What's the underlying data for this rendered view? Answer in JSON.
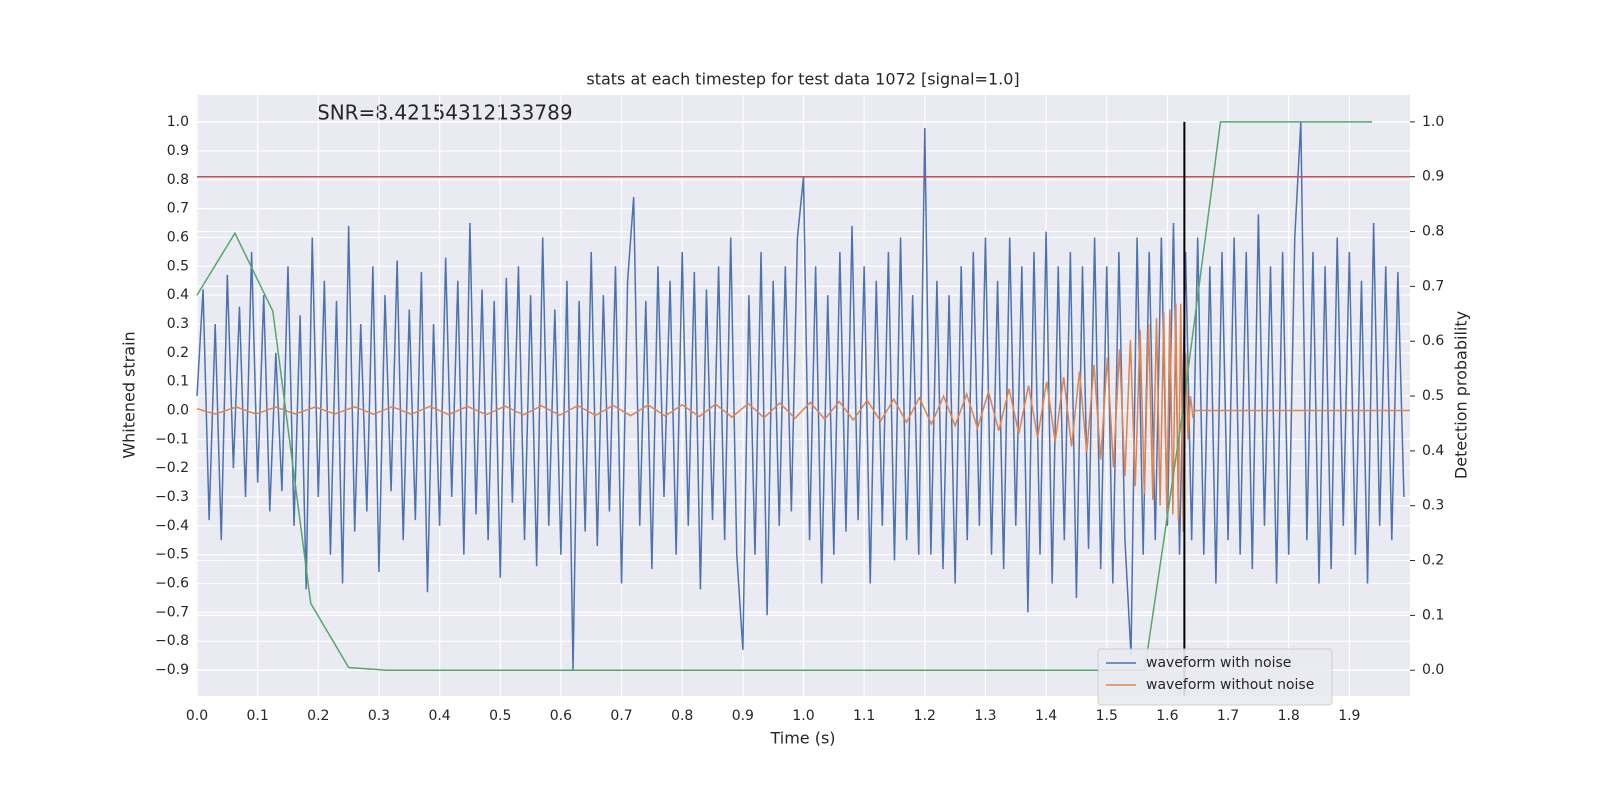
{
  "chart_data": {
    "type": "line",
    "title": "stats at each timestep for test data 1072 [signal=1.0]",
    "annotation": "SNR=8.42154312133789",
    "xlabel": "Time (s)",
    "ylabel": "Whitened strain",
    "y2label": "Detection probability",
    "xlim": [
      0,
      2.0
    ],
    "ylim": [
      -0.99,
      1.094
    ],
    "y2lim": [
      -0.047,
      1.049
    ],
    "xticks": [
      {
        "value": 0,
        "label": "0.0"
      },
      0.1,
      0.2,
      0.3,
      0.4,
      0.5,
      0.6,
      0.7,
      0.8,
      0.9,
      {
        "value": 1,
        "label": "1.0"
      },
      1.1,
      1.2,
      1.3,
      1.4,
      1.5,
      1.6,
      1.7,
      1.8,
      1.9
    ],
    "yticks": [
      {
        "value": -0.9,
        "label": "−0.9"
      },
      {
        "value": -0.8,
        "label": "−0.8"
      },
      {
        "value": -0.7,
        "label": "−0.7"
      },
      {
        "value": -0.6,
        "label": "−0.6"
      },
      {
        "value": -0.5,
        "label": "−0.5"
      },
      {
        "value": -0.4,
        "label": "−0.4"
      },
      {
        "value": -0.3,
        "label": "−0.3"
      },
      {
        "value": -0.2,
        "label": "−0.2"
      },
      {
        "value": -0.1,
        "label": "−0.1"
      },
      {
        "value": 0,
        "label": "0.0"
      },
      0.1,
      0.2,
      0.3,
      0.4,
      0.5,
      0.6,
      0.7,
      0.8,
      0.9,
      {
        "value": 1,
        "label": "1.0"
      }
    ],
    "y2ticks": [
      {
        "value": 0,
        "label": "0.0"
      },
      0.1,
      0.2,
      0.3,
      0.4,
      0.5,
      0.6,
      0.7,
      0.8,
      0.9,
      {
        "value": 1,
        "label": "1.0"
      }
    ],
    "grid": true,
    "legend": "lower right",
    "threshold": {
      "y2": 0.9,
      "color": "#c44e52"
    },
    "vline": {
      "x": 1.628,
      "y2range": [
        -0.047,
        1.0
      ],
      "color": "#000000"
    },
    "series": [
      {
        "name": "waveform with noise",
        "color": "#4c72b0",
        "x": [
          0,
          0.01,
          0.02,
          0.03,
          0.04,
          0.05,
          0.06,
          0.07,
          0.08,
          0.09,
          0.1,
          0.11,
          0.12,
          0.13,
          0.14,
          0.15,
          0.16,
          0.17,
          0.18,
          0.19,
          0.2,
          0.21,
          0.22,
          0.23,
          0.24,
          0.25,
          0.26,
          0.27,
          0.28,
          0.29,
          0.3,
          0.31,
          0.32,
          0.33,
          0.34,
          0.35,
          0.36,
          0.37,
          0.38,
          0.39,
          0.4,
          0.41,
          0.42,
          0.43,
          0.44,
          0.45,
          0.46,
          0.47,
          0.48,
          0.49,
          0.5,
          0.51,
          0.52,
          0.53,
          0.54,
          0.55,
          0.56,
          0.57,
          0.58,
          0.59,
          0.6,
          0.61,
          0.62,
          0.63,
          0.64,
          0.65,
          0.66,
          0.67,
          0.68,
          0.69,
          0.7,
          0.71,
          0.72,
          0.73,
          0.74,
          0.75,
          0.76,
          0.77,
          0.78,
          0.79,
          0.8,
          0.81,
          0.82,
          0.83,
          0.84,
          0.85,
          0.86,
          0.87,
          0.88,
          0.89,
          0.9,
          0.91,
          0.92,
          0.93,
          0.94,
          0.95,
          0.96,
          0.97,
          0.98,
          0.99,
          1.0,
          1.01,
          1.02,
          1.03,
          1.04,
          1.05,
          1.06,
          1.07,
          1.08,
          1.09,
          1.1,
          1.11,
          1.12,
          1.13,
          1.14,
          1.15,
          1.16,
          1.17,
          1.18,
          1.19,
          1.2,
          1.21,
          1.22,
          1.23,
          1.24,
          1.25,
          1.26,
          1.27,
          1.28,
          1.29,
          1.3,
          1.31,
          1.32,
          1.33,
          1.34,
          1.35,
          1.36,
          1.37,
          1.38,
          1.39,
          1.4,
          1.41,
          1.42,
          1.43,
          1.44,
          1.45,
          1.46,
          1.47,
          1.48,
          1.49,
          1.5,
          1.51,
          1.52,
          1.53,
          1.54,
          1.55,
          1.56,
          1.57,
          1.58,
          1.59,
          1.6,
          1.61,
          1.62,
          1.63,
          1.64,
          1.65,
          1.66,
          1.67,
          1.68,
          1.69,
          1.7,
          1.71,
          1.72,
          1.73,
          1.74,
          1.75,
          1.76,
          1.77,
          1.78,
          1.79,
          1.8,
          1.81,
          1.82,
          1.83,
          1.84,
          1.85,
          1.86,
          1.87,
          1.88,
          1.89,
          1.9,
          1.91,
          1.92,
          1.93,
          1.94,
          1.95,
          1.96,
          1.97,
          1.98,
          1.99
        ],
        "values": [
          0.05,
          0.42,
          -0.38,
          0.3,
          -0.45,
          0.47,
          -0.2,
          0.36,
          -0.3,
          0.55,
          -0.25,
          0.4,
          -0.35,
          0.2,
          -0.28,
          0.5,
          -0.4,
          0.33,
          -0.62,
          0.6,
          -0.3,
          0.45,
          -0.5,
          0.38,
          -0.6,
          0.64,
          -0.42,
          0.3,
          -0.35,
          0.5,
          -0.56,
          0.4,
          -0.28,
          0.52,
          -0.45,
          0.35,
          -0.38,
          0.48,
          -0.63,
          0.3,
          -0.4,
          0.53,
          -0.3,
          0.45,
          -0.5,
          0.65,
          -0.36,
          0.42,
          -0.45,
          0.38,
          -0.58,
          0.46,
          -0.32,
          0.5,
          -0.45,
          0.4,
          -0.54,
          0.6,
          -0.4,
          0.35,
          -0.5,
          0.45,
          -0.9,
          0.38,
          -0.42,
          0.55,
          -0.47,
          0.4,
          -0.35,
          0.5,
          -0.6,
          0.45,
          0.74,
          -0.4,
          0.38,
          -0.55,
          0.5,
          -0.3,
          0.45,
          -0.5,
          0.55,
          -0.4,
          0.48,
          -0.62,
          0.42,
          -0.38,
          0.5,
          -0.45,
          0.6,
          -0.5,
          -0.83,
          0.4,
          -0.5,
          0.55,
          -0.71,
          0.45,
          -0.4,
          0.5,
          -0.35,
          0.6,
          0.81,
          -0.45,
          0.5,
          -0.6,
          0.4,
          -0.5,
          0.55,
          -0.42,
          0.64,
          -0.38,
          0.5,
          -0.6,
          0.45,
          -0.4,
          0.55,
          -0.52,
          0.6,
          -0.45,
          0.4,
          -0.5,
          0.98,
          -0.5,
          0.45,
          -0.55,
          0.4,
          -0.6,
          0.5,
          -0.45,
          0.55,
          -0.4,
          0.6,
          -0.5,
          0.45,
          -0.55,
          0.6,
          -0.4,
          0.5,
          -0.7,
          0.55,
          -0.5,
          0.62,
          -0.6,
          0.5,
          -0.45,
          0.55,
          -0.65,
          0.5,
          -0.48,
          0.6,
          -0.55,
          0.5,
          -0.6,
          0.55,
          -0.45,
          -0.85,
          0.6,
          -0.5,
          0.55,
          -0.45,
          0.6,
          -0.4,
          0.65,
          -0.5,
          0.55,
          -0.45,
          0.6,
          -0.5,
          0.5,
          -0.6,
          0.55,
          -0.45,
          0.6,
          -0.5,
          0.55,
          -0.55,
          0.68,
          -0.4,
          0.5,
          -0.6,
          0.55,
          -0.5,
          0.6,
          1.0,
          -0.45,
          0.55,
          -0.6,
          0.5,
          -0.55,
          0.6,
          -0.4,
          0.55,
          -0.5,
          0.45,
          -0.6,
          0.65,
          -0.4,
          0.5,
          -0.45,
          0.48,
          -0.3
        ]
      },
      {
        "name": "waveform without noise",
        "color": "#dd8452",
        "x": [
          0,
          0.03,
          0.065,
          0.097,
          0.13,
          0.162,
          0.195,
          0.227,
          0.26,
          0.291,
          0.322,
          0.353,
          0.384,
          0.415,
          0.446,
          0.477,
          0.508,
          0.538,
          0.568,
          0.598,
          0.628,
          0.657,
          0.686,
          0.715,
          0.744,
          0.772,
          0.8,
          0.828,
          0.855,
          0.882,
          0.909,
          0.935,
          0.961,
          0.986,
          1.011,
          1.035,
          1.059,
          1.082,
          1.105,
          1.127,
          1.149,
          1.17,
          1.191,
          1.211,
          1.231,
          1.25,
          1.269,
          1.287,
          1.305,
          1.322,
          1.339,
          1.355,
          1.371,
          1.386,
          1.401,
          1.415,
          1.429,
          1.442,
          1.455,
          1.467,
          1.479,
          1.49,
          1.501,
          1.511,
          1.521,
          1.53,
          1.539,
          1.547,
          1.555,
          1.562,
          1.569,
          1.576,
          1.582,
          1.588,
          1.594,
          1.599,
          1.604,
          1.609,
          1.614,
          1.618,
          1.622,
          1.626,
          1.63,
          1.634,
          1.638,
          1.642,
          1.646,
          2.0
        ],
        "values": [
          0.006,
          -0.012,
          0.012,
          -0.012,
          0.012,
          -0.012,
          0.012,
          -0.012,
          0.013,
          -0.013,
          0.013,
          -0.013,
          0.014,
          -0.014,
          0.014,
          -0.014,
          0.015,
          -0.015,
          0.016,
          -0.016,
          0.017,
          -0.017,
          0.018,
          -0.018,
          0.019,
          -0.019,
          0.02,
          -0.021,
          0.022,
          -0.023,
          0.024,
          -0.025,
          0.026,
          -0.027,
          0.028,
          -0.03,
          0.031,
          -0.033,
          0.035,
          -0.037,
          0.039,
          -0.041,
          0.044,
          -0.047,
          0.05,
          -0.053,
          0.057,
          -0.061,
          0.065,
          -0.07,
          0.075,
          -0.08,
          0.086,
          -0.093,
          0.1,
          -0.108,
          0.116,
          -0.125,
          0.135,
          -0.146,
          0.158,
          -0.17,
          0.183,
          -0.197,
          0.212,
          -0.228,
          0.245,
          -0.262,
          0.28,
          -0.29,
          0.3,
          -0.31,
          0.32,
          -0.33,
          0.34,
          -0.35,
          0.35,
          -0.36,
          0.37,
          -0.38,
          0.37,
          -0.42,
          0.2,
          -0.1,
          0.05,
          -0.02,
          0,
          0
        ]
      },
      {
        "color": "#55a868",
        "axis": "y2",
        "x": [
          0,
          0.0625,
          0.125,
          0.1875,
          0.25,
          0.3125,
          0.375,
          0.4375,
          0.5,
          0.5625,
          0.625,
          0.6875,
          0.75,
          0.8125,
          0.875,
          0.9375,
          1.0,
          1.0625,
          1.125,
          1.1875,
          1.25,
          1.3125,
          1.375,
          1.4375,
          1.5,
          1.5625,
          1.625,
          1.6875,
          1.75,
          1.8125,
          1.875,
          1.9375
        ],
        "values": [
          0.684,
          0.797,
          0.655,
          0.122,
          0.005,
          0,
          0,
          0,
          0,
          0,
          0,
          0,
          0,
          0,
          0,
          0,
          0,
          0,
          0,
          0,
          0,
          0,
          0,
          0,
          0,
          0,
          0.47,
          1.0,
          1.0,
          1.0,
          1.0,
          1.0
        ]
      }
    ]
  }
}
